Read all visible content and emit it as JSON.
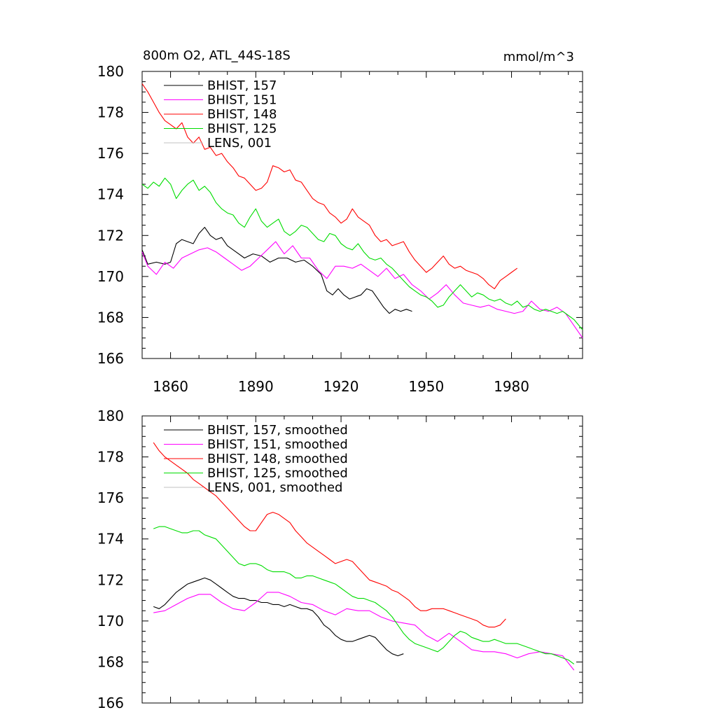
{
  "colors": {
    "BHIST_157": "#000000",
    "BHIST_151": "#ff00ff",
    "BHIST_148": "#ff0000",
    "BHIST_125": "#00dd00",
    "LENS_001": "#c0c0c0"
  },
  "chart_data": [
    {
      "type": "line",
      "title": "800m O2, ATL_44S-18S",
      "units": "mmol/m^3",
      "xlim": [
        1850,
        2005
      ],
      "ylim": [
        166,
        180
      ],
      "xticks": [
        1860,
        1890,
        1920,
        1950,
        1980
      ],
      "yticks": [
        166,
        168,
        170,
        172,
        174,
        176,
        178,
        180
      ],
      "grid": false,
      "legend_position": "top-left",
      "series": [
        {
          "name": "BHIST, 157",
          "color_key": "BHIST_157",
          "x": [
            1850,
            1852,
            1855,
            1858,
            1860,
            1862,
            1864,
            1866,
            1868,
            1870,
            1872,
            1874,
            1876,
            1878,
            1880,
            1883,
            1886,
            1889,
            1892,
            1895,
            1898,
            1901,
            1904,
            1907,
            1910,
            1913,
            1915,
            1917,
            1919,
            1921,
            1923,
            1925,
            1927,
            1929,
            1931,
            1933,
            1935,
            1937,
            1939,
            1941,
            1943,
            1945
          ],
          "y": [
            171.3,
            170.6,
            170.7,
            170.6,
            170.7,
            171.6,
            171.8,
            171.7,
            171.6,
            172.1,
            172.4,
            172.0,
            171.8,
            171.9,
            171.5,
            171.2,
            170.9,
            171.1,
            171.0,
            170.7,
            170.9,
            170.9,
            170.7,
            170.8,
            170.5,
            170.1,
            169.3,
            169.1,
            169.4,
            169.1,
            168.9,
            169.0,
            169.1,
            169.4,
            169.3,
            168.9,
            168.5,
            168.2,
            168.4,
            168.3,
            168.4,
            168.3
          ]
        },
        {
          "name": "BHIST, 151",
          "color_key": "BHIST_151",
          "x": [
            1850,
            1852,
            1855,
            1858,
            1861,
            1864,
            1867,
            1870,
            1873,
            1876,
            1879,
            1882,
            1885,
            1888,
            1891,
            1894,
            1897,
            1900,
            1903,
            1906,
            1909,
            1912,
            1915,
            1918,
            1921,
            1924,
            1927,
            1930,
            1933,
            1936,
            1939,
            1942,
            1945,
            1948,
            1951,
            1954,
            1957,
            1960,
            1963,
            1966,
            1969,
            1972,
            1975,
            1978,
            1981,
            1984,
            1987,
            1990,
            1993,
            1996,
            1999,
            2002,
            2005
          ],
          "y": [
            171.2,
            170.5,
            170.1,
            170.7,
            170.4,
            170.9,
            171.1,
            171.3,
            171.4,
            171.2,
            170.9,
            170.6,
            170.3,
            170.5,
            170.9,
            171.3,
            171.7,
            171.1,
            171.5,
            170.9,
            170.9,
            170.3,
            169.9,
            170.5,
            170.5,
            170.4,
            170.6,
            170.3,
            170.0,
            170.4,
            169.9,
            170.1,
            169.6,
            169.3,
            168.9,
            169.2,
            169.6,
            169.1,
            168.7,
            168.6,
            168.5,
            168.6,
            168.4,
            168.3,
            168.2,
            168.3,
            168.8,
            168.4,
            168.3,
            168.5,
            168.2,
            167.6,
            167.0
          ]
        },
        {
          "name": "BHIST, 148",
          "color_key": "BHIST_148",
          "x": [
            1850,
            1852,
            1854,
            1856,
            1858,
            1860,
            1862,
            1864,
            1866,
            1868,
            1870,
            1872,
            1874,
            1876,
            1878,
            1880,
            1882,
            1884,
            1886,
            1888,
            1890,
            1892,
            1894,
            1896,
            1898,
            1900,
            1902,
            1904,
            1906,
            1908,
            1910,
            1912,
            1914,
            1916,
            1918,
            1920,
            1922,
            1924,
            1926,
            1928,
            1930,
            1932,
            1934,
            1936,
            1938,
            1940,
            1942,
            1944,
            1946,
            1948,
            1950,
            1952,
            1954,
            1956,
            1958,
            1960,
            1962,
            1964,
            1966,
            1968,
            1970,
            1972,
            1974,
            1976,
            1978,
            1980,
            1982
          ],
          "y": [
            179.4,
            179.0,
            178.5,
            178.0,
            177.6,
            177.4,
            177.2,
            177.5,
            176.8,
            176.5,
            176.8,
            176.2,
            176.3,
            175.9,
            176.0,
            175.6,
            175.3,
            174.9,
            174.8,
            174.5,
            174.2,
            174.3,
            174.6,
            175.4,
            175.3,
            175.1,
            175.2,
            174.7,
            174.6,
            174.2,
            173.8,
            173.6,
            173.5,
            173.1,
            172.9,
            172.6,
            172.8,
            173.3,
            172.9,
            172.7,
            172.5,
            172.0,
            171.7,
            171.8,
            171.5,
            171.6,
            171.7,
            171.2,
            170.8,
            170.5,
            170.2,
            170.4,
            170.7,
            171.0,
            170.6,
            170.4,
            170.5,
            170.3,
            170.2,
            170.1,
            169.9,
            169.6,
            169.4,
            169.8,
            170.0,
            170.2,
            170.4
          ]
        },
        {
          "name": "BHIST, 125",
          "color_key": "BHIST_125",
          "x": [
            1850,
            1852,
            1854,
            1856,
            1858,
            1860,
            1862,
            1864,
            1866,
            1868,
            1870,
            1872,
            1874,
            1876,
            1878,
            1880,
            1882,
            1884,
            1886,
            1888,
            1890,
            1892,
            1894,
            1896,
            1898,
            1900,
            1902,
            1904,
            1906,
            1908,
            1910,
            1912,
            1914,
            1916,
            1918,
            1920,
            1922,
            1924,
            1926,
            1928,
            1930,
            1932,
            1934,
            1936,
            1938,
            1940,
            1942,
            1944,
            1946,
            1948,
            1950,
            1952,
            1954,
            1956,
            1958,
            1960,
            1962,
            1964,
            1966,
            1968,
            1970,
            1972,
            1974,
            1976,
            1978,
            1980,
            1982,
            1984,
            1986,
            1988,
            1990,
            1992,
            1994,
            1996,
            1998,
            2000,
            2002,
            2005
          ],
          "y": [
            174.5,
            174.3,
            174.6,
            174.4,
            174.8,
            174.5,
            173.8,
            174.2,
            174.5,
            174.7,
            174.2,
            174.4,
            174.1,
            173.6,
            173.3,
            173.1,
            173.0,
            172.6,
            172.4,
            172.9,
            173.3,
            172.7,
            172.4,
            172.6,
            172.8,
            172.2,
            172.0,
            172.2,
            172.5,
            172.4,
            172.1,
            171.8,
            171.7,
            172.1,
            172.0,
            171.6,
            171.4,
            171.3,
            171.6,
            171.2,
            170.9,
            170.8,
            170.9,
            170.6,
            170.4,
            170.1,
            169.8,
            169.5,
            169.3,
            169.1,
            169.0,
            168.8,
            168.5,
            168.6,
            169.0,
            169.3,
            169.6,
            169.3,
            169.0,
            169.2,
            169.1,
            168.9,
            168.8,
            168.9,
            168.7,
            168.6,
            168.8,
            168.5,
            168.6,
            168.4,
            168.3,
            168.4,
            168.3,
            168.2,
            168.3,
            168.1,
            167.9,
            167.4
          ]
        },
        {
          "name": "LENS, 001",
          "color_key": "LENS_001",
          "x": [],
          "y": []
        }
      ]
    },
    {
      "type": "line",
      "xlim": [
        1850,
        2005
      ],
      "ylim": [
        166,
        180
      ],
      "xticks": [
        1860,
        1890,
        1920,
        1950,
        1980
      ],
      "yticks": [
        166,
        168,
        170,
        172,
        174,
        176,
        178,
        180
      ],
      "grid": false,
      "legend_position": "top-left",
      "series": [
        {
          "name": "BHIST, 157, smoothed",
          "color_key": "BHIST_157",
          "x": [
            1854,
            1856,
            1858,
            1860,
            1862,
            1864,
            1866,
            1868,
            1870,
            1872,
            1874,
            1876,
            1878,
            1880,
            1882,
            1884,
            1886,
            1888,
            1890,
            1892,
            1894,
            1896,
            1898,
            1900,
            1902,
            1904,
            1906,
            1908,
            1910,
            1912,
            1914,
            1916,
            1918,
            1920,
            1922,
            1924,
            1926,
            1928,
            1930,
            1932,
            1934,
            1936,
            1938,
            1940,
            1942
          ],
          "y": [
            170.7,
            170.6,
            170.8,
            171.1,
            171.4,
            171.6,
            171.8,
            171.9,
            172.0,
            172.1,
            172.0,
            171.8,
            171.6,
            171.4,
            171.2,
            171.1,
            171.1,
            171.0,
            171.0,
            170.9,
            170.9,
            170.8,
            170.8,
            170.7,
            170.8,
            170.7,
            170.6,
            170.6,
            170.5,
            170.2,
            169.8,
            169.6,
            169.3,
            169.1,
            169.0,
            169.0,
            169.1,
            169.2,
            169.3,
            169.2,
            168.9,
            168.6,
            168.4,
            168.3,
            168.4
          ]
        },
        {
          "name": "BHIST, 151, smoothed",
          "color_key": "BHIST_151",
          "x": [
            1854,
            1858,
            1862,
            1866,
            1870,
            1874,
            1878,
            1882,
            1886,
            1890,
            1894,
            1898,
            1902,
            1906,
            1910,
            1914,
            1918,
            1922,
            1926,
            1930,
            1934,
            1938,
            1942,
            1946,
            1950,
            1954,
            1958,
            1962,
            1966,
            1970,
            1974,
            1978,
            1982,
            1986,
            1990,
            1994,
            1998,
            2002
          ],
          "y": [
            170.4,
            170.5,
            170.8,
            171.1,
            171.3,
            171.3,
            170.9,
            170.6,
            170.5,
            170.9,
            171.4,
            171.4,
            171.2,
            170.9,
            170.8,
            170.5,
            170.3,
            170.6,
            170.5,
            170.5,
            170.2,
            170.0,
            169.9,
            169.8,
            169.3,
            169.0,
            169.4,
            169.0,
            168.6,
            168.5,
            168.5,
            168.4,
            168.2,
            168.4,
            168.5,
            168.4,
            168.3,
            167.6
          ]
        },
        {
          "name": "BHIST, 148, smoothed",
          "color_key": "BHIST_148",
          "x": [
            1854,
            1856,
            1858,
            1860,
            1862,
            1864,
            1866,
            1868,
            1870,
            1872,
            1874,
            1876,
            1878,
            1880,
            1882,
            1884,
            1886,
            1888,
            1890,
            1892,
            1894,
            1896,
            1898,
            1900,
            1902,
            1904,
            1906,
            1908,
            1910,
            1912,
            1914,
            1916,
            1918,
            1920,
            1922,
            1924,
            1926,
            1928,
            1930,
            1932,
            1934,
            1936,
            1938,
            1940,
            1942,
            1944,
            1946,
            1948,
            1950,
            1952,
            1954,
            1956,
            1958,
            1960,
            1962,
            1964,
            1966,
            1968,
            1970,
            1972,
            1974,
            1976,
            1978
          ],
          "y": [
            178.7,
            178.3,
            178.0,
            177.8,
            177.6,
            177.4,
            177.2,
            176.9,
            176.7,
            176.5,
            176.3,
            176.1,
            175.8,
            175.5,
            175.2,
            174.9,
            174.6,
            174.4,
            174.4,
            174.8,
            175.2,
            175.3,
            175.2,
            175.0,
            174.8,
            174.4,
            174.1,
            173.8,
            173.6,
            173.4,
            173.2,
            173.0,
            172.8,
            172.9,
            173.0,
            172.9,
            172.6,
            172.3,
            172.0,
            171.9,
            171.8,
            171.7,
            171.5,
            171.4,
            171.2,
            171.0,
            170.7,
            170.5,
            170.5,
            170.6,
            170.6,
            170.6,
            170.5,
            170.4,
            170.3,
            170.2,
            170.1,
            170.0,
            169.8,
            169.7,
            169.7,
            169.8,
            170.1
          ]
        },
        {
          "name": "BHIST, 125, smoothed",
          "color_key": "BHIST_125",
          "x": [
            1854,
            1856,
            1858,
            1860,
            1862,
            1864,
            1866,
            1868,
            1870,
            1872,
            1874,
            1876,
            1878,
            1880,
            1882,
            1884,
            1886,
            1888,
            1890,
            1892,
            1894,
            1896,
            1898,
            1900,
            1902,
            1904,
            1906,
            1908,
            1910,
            1912,
            1914,
            1916,
            1918,
            1920,
            1922,
            1924,
            1926,
            1928,
            1930,
            1932,
            1934,
            1936,
            1938,
            1940,
            1942,
            1944,
            1946,
            1948,
            1950,
            1952,
            1954,
            1956,
            1958,
            1960,
            1962,
            1964,
            1966,
            1968,
            1970,
            1972,
            1974,
            1976,
            1978,
            1980,
            1982,
            1984,
            1986,
            1988,
            1990,
            1992,
            1994,
            1996,
            1998,
            2000,
            2002
          ],
          "y": [
            174.5,
            174.6,
            174.6,
            174.5,
            174.4,
            174.3,
            174.3,
            174.4,
            174.4,
            174.2,
            174.1,
            174.0,
            173.7,
            173.4,
            173.1,
            172.8,
            172.7,
            172.8,
            172.8,
            172.7,
            172.5,
            172.4,
            172.4,
            172.4,
            172.3,
            172.1,
            172.1,
            172.2,
            172.2,
            172.1,
            172.0,
            171.9,
            171.8,
            171.6,
            171.4,
            171.2,
            171.1,
            171.1,
            171.0,
            170.9,
            170.7,
            170.5,
            170.2,
            169.8,
            169.4,
            169.1,
            168.9,
            168.8,
            168.7,
            168.6,
            168.5,
            168.7,
            169.0,
            169.3,
            169.5,
            169.4,
            169.2,
            169.1,
            169.0,
            169.0,
            169.1,
            169.0,
            168.9,
            168.9,
            168.9,
            168.8,
            168.7,
            168.6,
            168.5,
            168.4,
            168.4,
            168.3,
            168.2,
            168.1,
            167.9
          ]
        },
        {
          "name": "LENS, 001, smoothed",
          "color_key": "LENS_001",
          "x": [],
          "y": []
        }
      ]
    }
  ]
}
